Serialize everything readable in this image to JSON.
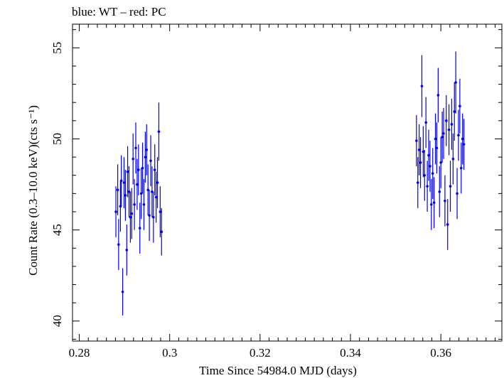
{
  "chart_data": {
    "type": "scatter",
    "title": "blue: WT – red: PC",
    "xlabel": "Time Since 54984.0 MJD (days)",
    "ylabel": "Count Rate (0.3–10.0 keV)(cts s⁻¹)",
    "xlim": [
      0.2785,
      0.3735
    ],
    "ylim": [
      38.9,
      56.3
    ],
    "x_ticks": [
      0.28,
      0.3,
      0.32,
      0.34,
      0.36
    ],
    "x_tick_labels": [
      "0.28",
      "0.3",
      "0.32",
      "0.34",
      "0.36"
    ],
    "y_ticks": [
      40,
      45,
      50,
      55
    ],
    "y_tick_labels": [
      "40",
      "45",
      "50",
      "55"
    ],
    "grid": false,
    "series": [
      {
        "name": "WT",
        "color": "#0000ee",
        "x_error": 0.0002,
        "points": [
          {
            "x": 0.2881,
            "y": 46.0,
            "err": 1.4
          },
          {
            "x": 0.2885,
            "y": 47.2,
            "err": 1.4
          },
          {
            "x": 0.2887,
            "y": 44.2,
            "err": 1.4
          },
          {
            "x": 0.2891,
            "y": 46.3,
            "err": 1.4
          },
          {
            "x": 0.2893,
            "y": 47.7,
            "err": 1.4
          },
          {
            "x": 0.2896,
            "y": 41.6,
            "err": 1.3
          },
          {
            "x": 0.2899,
            "y": 47.6,
            "err": 1.4
          },
          {
            "x": 0.2902,
            "y": 46.9,
            "err": 1.4
          },
          {
            "x": 0.2905,
            "y": 43.9,
            "err": 1.4
          },
          {
            "x": 0.2907,
            "y": 48.2,
            "err": 1.4
          },
          {
            "x": 0.291,
            "y": 47.1,
            "err": 1.4
          },
          {
            "x": 0.2913,
            "y": 45.7,
            "err": 1.4
          },
          {
            "x": 0.2916,
            "y": 45.9,
            "err": 1.4
          },
          {
            "x": 0.2919,
            "y": 48.9,
            "err": 1.4
          },
          {
            "x": 0.2922,
            "y": 46.4,
            "err": 1.4
          },
          {
            "x": 0.2925,
            "y": 49.5,
            "err": 1.4
          },
          {
            "x": 0.2928,
            "y": 47.5,
            "err": 1.4
          },
          {
            "x": 0.2931,
            "y": 48.3,
            "err": 1.4
          },
          {
            "x": 0.2934,
            "y": 45.1,
            "err": 1.4
          },
          {
            "x": 0.2937,
            "y": 47.0,
            "err": 1.4
          },
          {
            "x": 0.294,
            "y": 48.4,
            "err": 1.4
          },
          {
            "x": 0.2943,
            "y": 46.4,
            "err": 1.4
          },
          {
            "x": 0.2946,
            "y": 49.0,
            "err": 1.4
          },
          {
            "x": 0.2949,
            "y": 49.4,
            "err": 1.4
          },
          {
            "x": 0.2952,
            "y": 47.2,
            "err": 1.4
          },
          {
            "x": 0.2955,
            "y": 45.8,
            "err": 1.4
          },
          {
            "x": 0.2958,
            "y": 48.8,
            "err": 1.4
          },
          {
            "x": 0.2961,
            "y": 47.1,
            "err": 1.4
          },
          {
            "x": 0.2964,
            "y": 45.7,
            "err": 1.4
          },
          {
            "x": 0.2967,
            "y": 48.3,
            "err": 1.4
          },
          {
            "x": 0.297,
            "y": 46.8,
            "err": 1.4
          },
          {
            "x": 0.2973,
            "y": 47.6,
            "err": 1.4
          },
          {
            "x": 0.2976,
            "y": 50.4,
            "err": 1.6
          },
          {
            "x": 0.2979,
            "y": 46.0,
            "err": 1.4
          },
          {
            "x": 0.2982,
            "y": 44.9,
            "err": 1.3
          }
        ]
      },
      {
        "name": "WT",
        "color": "#0000ee",
        "x_error": 0.0002,
        "points": [
          {
            "x": 0.3546,
            "y": 49.9,
            "err": 1.4
          },
          {
            "x": 0.3549,
            "y": 47.6,
            "err": 1.4
          },
          {
            "x": 0.3552,
            "y": 49.4,
            "err": 1.4
          },
          {
            "x": 0.3555,
            "y": 48.7,
            "err": 1.4
          },
          {
            "x": 0.3558,
            "y": 52.9,
            "err": 1.7
          },
          {
            "x": 0.3561,
            "y": 49.3,
            "err": 1.4
          },
          {
            "x": 0.3564,
            "y": 48.0,
            "err": 1.4
          },
          {
            "x": 0.3567,
            "y": 50.9,
            "err": 1.4
          },
          {
            "x": 0.357,
            "y": 47.4,
            "err": 1.4
          },
          {
            "x": 0.3573,
            "y": 49.1,
            "err": 1.4
          },
          {
            "x": 0.3576,
            "y": 48.5,
            "err": 1.4
          },
          {
            "x": 0.3579,
            "y": 46.4,
            "err": 1.4
          },
          {
            "x": 0.3582,
            "y": 48.1,
            "err": 1.4
          },
          {
            "x": 0.3585,
            "y": 46.5,
            "err": 1.4
          },
          {
            "x": 0.3588,
            "y": 50.0,
            "err": 1.4
          },
          {
            "x": 0.3591,
            "y": 49.5,
            "err": 1.4
          },
          {
            "x": 0.3594,
            "y": 52.4,
            "err": 1.5
          },
          {
            "x": 0.3597,
            "y": 47.1,
            "err": 1.4
          },
          {
            "x": 0.36,
            "y": 48.7,
            "err": 1.4
          },
          {
            "x": 0.3603,
            "y": 50.1,
            "err": 1.4
          },
          {
            "x": 0.3606,
            "y": 50.3,
            "err": 1.4
          },
          {
            "x": 0.3609,
            "y": 46.6,
            "err": 1.4
          },
          {
            "x": 0.3612,
            "y": 51.0,
            "err": 1.4
          },
          {
            "x": 0.3615,
            "y": 45.3,
            "err": 1.4
          },
          {
            "x": 0.3618,
            "y": 50.5,
            "err": 1.4
          },
          {
            "x": 0.3621,
            "y": 47.4,
            "err": 1.4
          },
          {
            "x": 0.3624,
            "y": 50.8,
            "err": 1.4
          },
          {
            "x": 0.3627,
            "y": 48.9,
            "err": 1.4
          },
          {
            "x": 0.363,
            "y": 51.5,
            "err": 1.6
          },
          {
            "x": 0.3633,
            "y": 53.1,
            "err": 1.7
          },
          {
            "x": 0.3636,
            "y": 47.0,
            "err": 1.4
          },
          {
            "x": 0.3639,
            "y": 50.2,
            "err": 1.4
          },
          {
            "x": 0.3642,
            "y": 51.8,
            "err": 1.5
          },
          {
            "x": 0.3645,
            "y": 48.4,
            "err": 1.4
          },
          {
            "x": 0.3648,
            "y": 50.0,
            "err": 1.4
          },
          {
            "x": 0.3651,
            "y": 49.7,
            "err": 1.4
          }
        ]
      }
    ]
  }
}
